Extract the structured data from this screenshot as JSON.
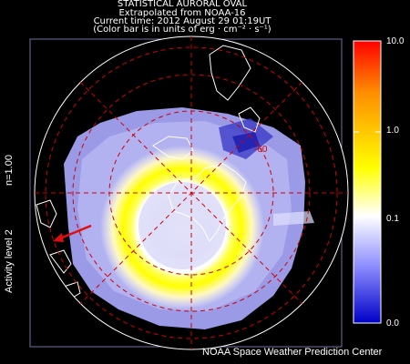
{
  "header": {
    "title": "STATISTICAL AURORAL OVAL",
    "subtitle": "Extrapolated from NOAA-16",
    "time": "Current time: 2012 August 29 01:19UT",
    "units_note": "(Color bar is in units of erg · cm⁻² · s⁻¹)"
  },
  "left_labels": {
    "activity": "Activity level 2",
    "n": "n=1.00"
  },
  "colorbar": {
    "ticks": [
      "10.0",
      "1.0",
      "0.1",
      "0.0"
    ],
    "colors": [
      "#ff0000",
      "#ff8c00",
      "#ffff00",
      "#ffffff",
      "#8c8cff",
      "#0000c8"
    ]
  },
  "map": {
    "latitude_label": "-60",
    "arrow_color": "#e01010",
    "grid_color": "#d00000",
    "oval_color": "#ffff00",
    "coast_color": "#ffffff"
  },
  "footer": {
    "credit": "NOAA Space Weather Prediction Center"
  }
}
